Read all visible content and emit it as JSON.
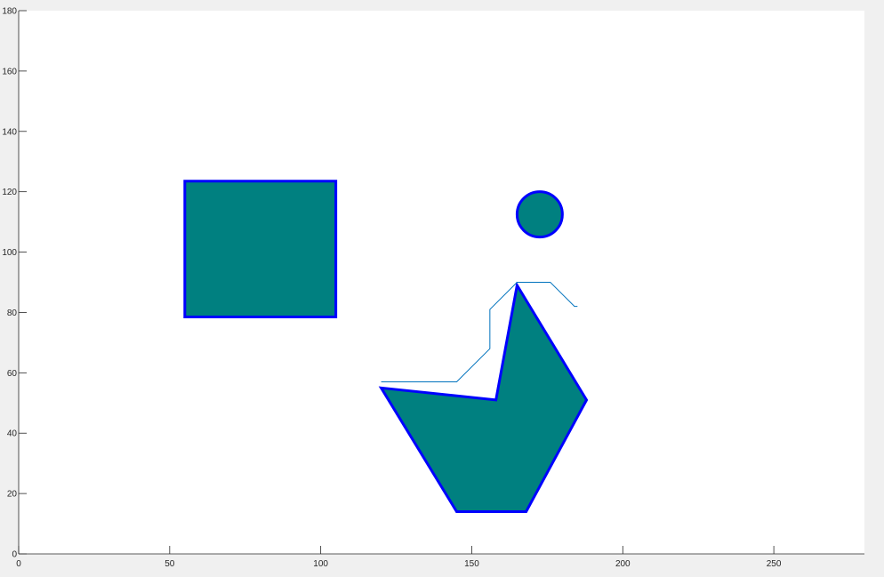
{
  "chart_data": {
    "type": "scatter",
    "title": "",
    "xlabel": "",
    "ylabel": "",
    "xlim": [
      0,
      280
    ],
    "ylim": [
      0,
      180
    ],
    "grid": false,
    "x_ticks": [
      0,
      50,
      100,
      150,
      200,
      250
    ],
    "y_ticks": [
      0,
      20,
      40,
      60,
      80,
      100,
      120,
      140,
      160,
      180
    ],
    "colors": {
      "figure_bg": "#f0f0f0",
      "axes_bg": "#ffffff",
      "fill": "#008080",
      "edge": "#0000ff",
      "path": "#0072bd",
      "axis": "#262626"
    },
    "shapes": [
      {
        "kind": "rectangle",
        "name": "rectangle-obstacle",
        "x": [
          55,
          105,
          105,
          55
        ],
        "y": [
          78.5,
          78.5,
          123.5,
          123.5
        ]
      },
      {
        "kind": "circle",
        "name": "circle-obstacle",
        "center": [
          172.5,
          112.5
        ],
        "radius": 7.5
      },
      {
        "kind": "polygon",
        "name": "polygon-obstacle",
        "x": [
          120,
          158,
          165,
          188,
          168,
          145
        ],
        "y": [
          55,
          51,
          89,
          51,
          14,
          14
        ]
      }
    ],
    "path": {
      "name": "path-line",
      "x": [
        120,
        145,
        156,
        156,
        165,
        176,
        184,
        185
      ],
      "y": [
        57,
        57,
        68,
        81,
        90,
        90,
        82,
        82
      ]
    }
  }
}
